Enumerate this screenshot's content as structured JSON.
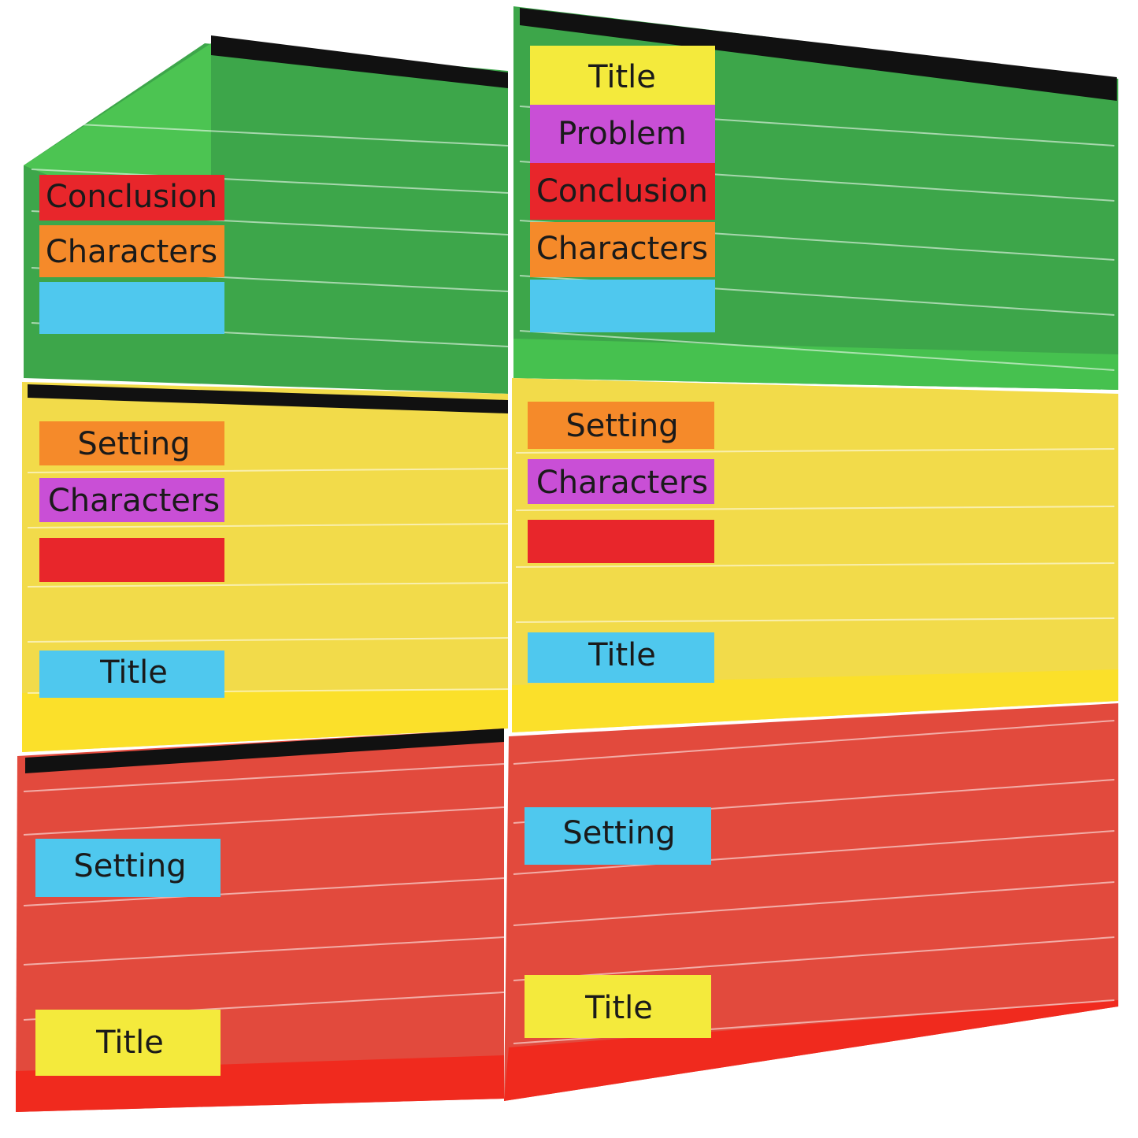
{
  "left_chart": {
    "green_section": {
      "cards": [
        "Conclusion",
        "Characters"
      ]
    },
    "yellow_section": {
      "cards": [
        "Setting",
        "Characters",
        "Title"
      ]
    },
    "red_section": {
      "cards": [
        "Setting",
        "Title"
      ]
    }
  },
  "right_chart": {
    "green_section": {
      "cards": [
        "Title",
        "Problem",
        "Conclusion",
        "Characters"
      ]
    },
    "yellow_section": {
      "cards": [
        "Setting",
        "Characters",
        "Title"
      ]
    },
    "red_section": {
      "cards": [
        "Setting",
        "Title"
      ]
    }
  }
}
